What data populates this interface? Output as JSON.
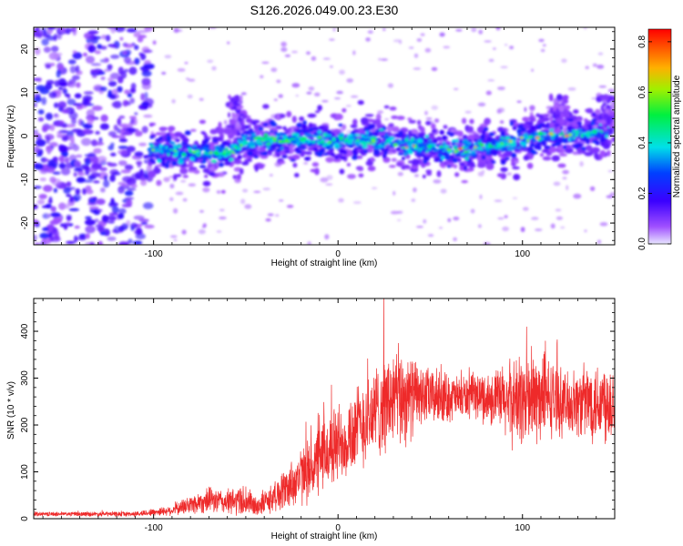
{
  "page": {
    "title": "S126.2026.049.00.23.E30",
    "colors": {
      "axis": "#000000",
      "snr_line": "#ee2a2a",
      "background": "#ffffff"
    }
  },
  "chart_data": [
    {
      "type": "heatmap",
      "name": "spectrogram",
      "xlabel": "Height of straight line (km)",
      "ylabel": "Frequency (Hz)",
      "xlim": [
        -165,
        150
      ],
      "ylim": [
        -25,
        25
      ],
      "xticks": [
        -100,
        0,
        100
      ],
      "xtick_labels": [
        "-100",
        "0",
        "100"
      ],
      "yticks": [
        -20,
        -10,
        0,
        10,
        20
      ],
      "ytick_labels": [
        "-20",
        "-10",
        "0",
        "10",
        "20"
      ],
      "noise_region_x": [
        -165,
        -102
      ],
      "signal_track": {
        "x": [
          -102,
          -80,
          -60,
          -50,
          -40,
          -20,
          0,
          20,
          40,
          55,
          70,
          85,
          100,
          110,
          120,
          130,
          140,
          150
        ],
        "freq": [
          -3,
          -4,
          -4,
          -1,
          -1,
          -1,
          -1,
          -1,
          -2,
          -3,
          -3,
          -2,
          -1,
          0,
          1,
          0,
          1,
          2
        ]
      },
      "peak_amplitude": 0.85,
      "colorbar": {
        "label": "Normalized spectral amplitude",
        "range": [
          0,
          0.85
        ],
        "ticks": [
          0.0,
          0.2,
          0.4,
          0.6,
          0.8
        ],
        "tick_labels": [
          "0.0",
          "0.2",
          "0.4",
          "0.6",
          "0.8"
        ]
      }
    },
    {
      "type": "line",
      "name": "snr",
      "xlabel": "Height of straight line (km)",
      "ylabel": "SNR (10 * v/v)",
      "xlim": [
        -165,
        150
      ],
      "ylim": [
        0,
        470
      ],
      "xticks": [
        -100,
        0,
        100
      ],
      "xtick_labels": [
        "-100",
        "0",
        "100"
      ],
      "yticks": [
        0,
        100,
        200,
        300,
        400
      ],
      "ytick_labels": [
        "0",
        "100",
        "200",
        "300",
        "400"
      ],
      "envelope": {
        "x": [
          -165,
          -110,
          -90,
          -80,
          -70,
          -60,
          -50,
          -45,
          -35,
          -25,
          -15,
          -5,
          5,
          15,
          25,
          35,
          45,
          55,
          65,
          75,
          85,
          95,
          105,
          115,
          125,
          135,
          150
        ],
        "mean": [
          10,
          10,
          18,
          30,
          40,
          35,
          40,
          25,
          45,
          75,
          105,
          145,
          175,
          210,
          245,
          260,
          262,
          260,
          258,
          262,
          255,
          250,
          255,
          258,
          245,
          250,
          255
        ],
        "spread": [
          4,
          5,
          10,
          20,
          25,
          25,
          35,
          20,
          30,
          50,
          65,
          80,
          85,
          90,
          100,
          105,
          60,
          55,
          45,
          45,
          60,
          90,
          100,
          80,
          60,
          80,
          90
        ]
      }
    }
  ]
}
